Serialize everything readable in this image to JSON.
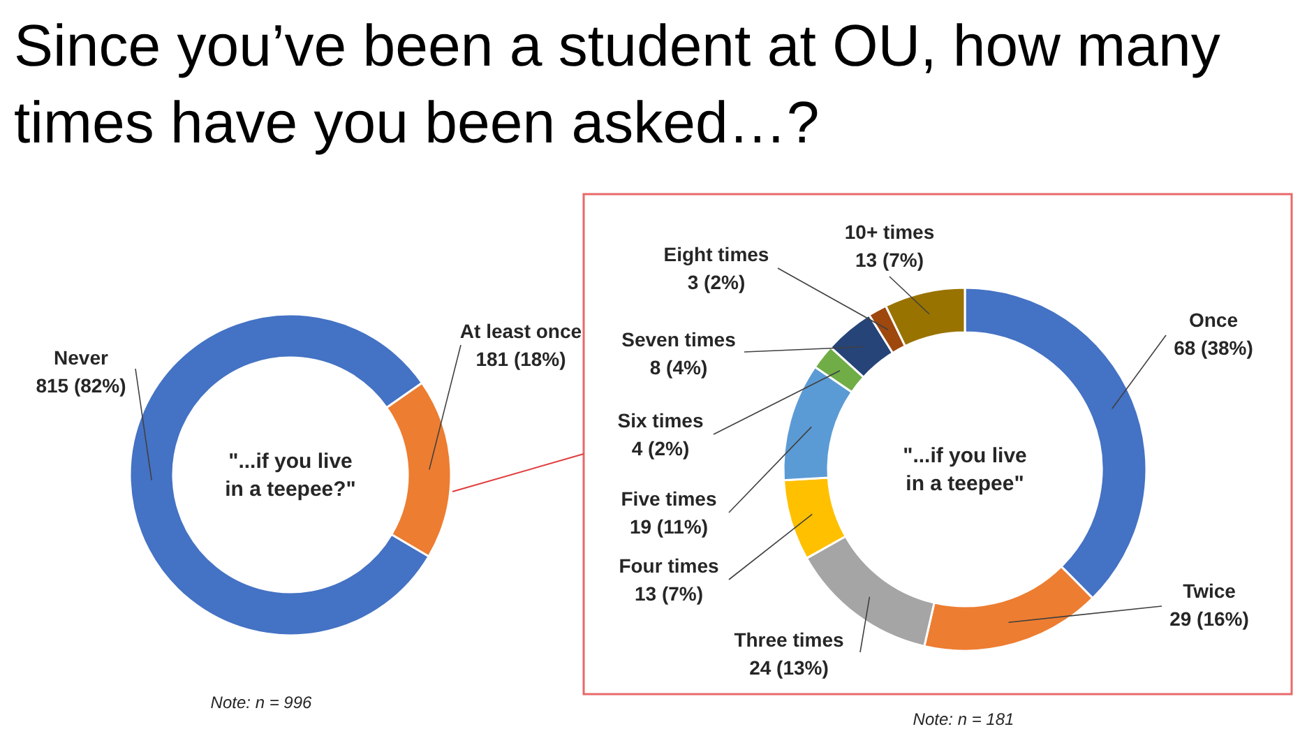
{
  "chart_data": [
    {
      "type": "donut",
      "title": "Since you’ve been a student at OU, how many times have you been asked…?",
      "categories": [
        "Never",
        "At least once"
      ],
      "values": [
        815,
        181
      ],
      "colors": [
        "#4472c4",
        "#ed7d31"
      ],
      "value_labels": [
        "815 (82%)",
        "181 (18%)"
      ],
      "annotations": [
        "\"...if you live in a teepee?\"",
        "Note: n = 996"
      ]
    },
    {
      "type": "donut",
      "categories": [
        "Once",
        "Twice",
        "Three times",
        "Four times",
        "Five times",
        "Six times",
        "Seven times",
        "Eight times",
        "10+ times"
      ],
      "values": [
        68,
        29,
        24,
        13,
        19,
        4,
        8,
        3,
        13
      ],
      "colors": [
        "#4472c4",
        "#ed7d31",
        "#a5a5a5",
        "#ffc000",
        "#5b9bd5",
        "#70ad47",
        "#264478",
        "#9e480e",
        "#997300"
      ],
      "value_labels": [
        "68 (38%)",
        "29 (16%)",
        "24 (13%)",
        "13 (7%)",
        "19 (11%)",
        "4 (2%)",
        "8 (4%)",
        "3 (2%)",
        "13 (7%)"
      ],
      "annotations": [
        "\"...if you live in a teepee\"",
        "Note: n = 181"
      ]
    }
  ]
}
